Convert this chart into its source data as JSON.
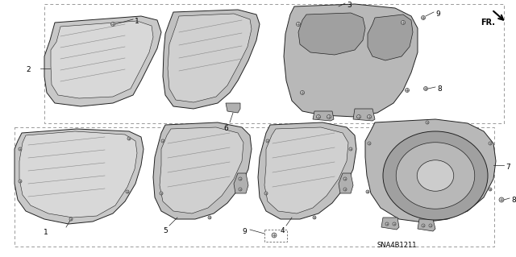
{
  "bg_color": "#ffffff",
  "diagram_code": "SNA4B1211",
  "line_color": "#222222",
  "fill_light": "#d4d4d4",
  "fill_mid": "#b8b8b8",
  "fill_dark": "#909090"
}
